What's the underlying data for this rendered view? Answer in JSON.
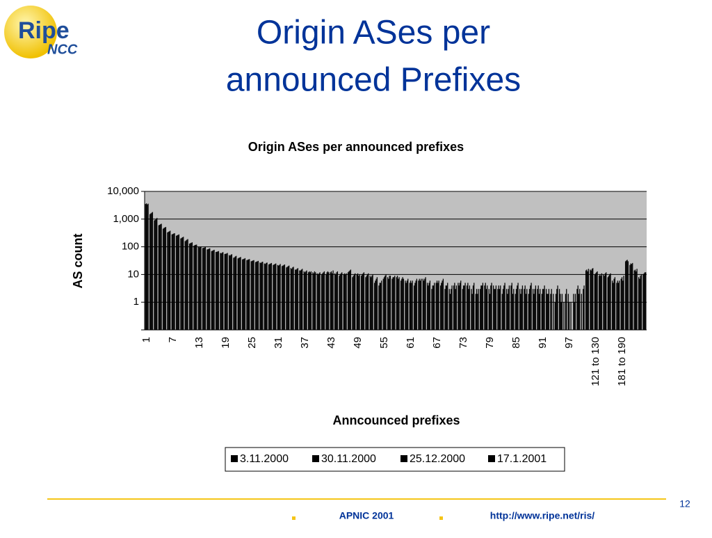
{
  "slide": {
    "logo_main": "Ripe",
    "logo_sub": "NCC",
    "title_lines": [
      "Origin ASes per",
      "announced Prefixes"
    ],
    "page_number": "12",
    "footer_left": "APNIC 2001",
    "footer_right": "http://www.ripe.net/ris/"
  },
  "chart_data": {
    "type": "bar",
    "title": "Origin ASes per announced prefixes",
    "x_label": "Anncounced prefixes",
    "y_label": "AS count",
    "log_scale": true,
    "grid": true,
    "ylim": [
      0.1,
      10000
    ],
    "yticks": [
      1,
      10,
      100,
      {
        "value": 1000,
        "label": "1,000"
      },
      {
        "value": 10000,
        "label": "10,000"
      }
    ],
    "categories": [
      "1",
      null,
      null,
      null,
      null,
      null,
      "7",
      null,
      null,
      null,
      null,
      null,
      "13",
      null,
      null,
      null,
      null,
      null,
      "19",
      null,
      null,
      null,
      null,
      null,
      "25",
      null,
      null,
      null,
      null,
      null,
      "31",
      null,
      null,
      null,
      null,
      null,
      "37",
      null,
      null,
      null,
      null,
      null,
      "43",
      null,
      null,
      null,
      null,
      null,
      "49",
      null,
      null,
      null,
      null,
      null,
      "55",
      null,
      null,
      null,
      null,
      null,
      "61",
      null,
      null,
      null,
      null,
      null,
      "67",
      null,
      null,
      null,
      null,
      null,
      "73",
      null,
      null,
      null,
      null,
      null,
      "79",
      null,
      null,
      null,
      null,
      null,
      "85",
      null,
      null,
      null,
      null,
      null,
      "91",
      null,
      null,
      null,
      null,
      null,
      "97",
      null,
      null,
      null,
      null,
      null,
      "121 to 130",
      null,
      null,
      null,
      null,
      null,
      "181 to 190",
      null,
      null,
      null,
      null,
      null
    ],
    "series": [
      {
        "name": "3.11.2000",
        "color": "#000000",
        "values": [
          3500,
          1500,
          900,
          600,
          450,
          330,
          280,
          250,
          200,
          160,
          130,
          110,
          100,
          90,
          80,
          70,
          65,
          60,
          55,
          50,
          40,
          38,
          35,
          33,
          30,
          28,
          27,
          25,
          23,
          22,
          22,
          20,
          18,
          17,
          15,
          14,
          13,
          12,
          12,
          11,
          10,
          10,
          12,
          11,
          9,
          10,
          12,
          8,
          10,
          9,
          8,
          9,
          5,
          4,
          7,
          8,
          7,
          8,
          6,
          6,
          5,
          4,
          6,
          7,
          5,
          3,
          5,
          4,
          3,
          3,
          4,
          5,
          3,
          4,
          3,
          2,
          3,
          4,
          3,
          4,
          3,
          2,
          3,
          4,
          2,
          3,
          3,
          2,
          3,
          3,
          2,
          3,
          2,
          1,
          3,
          1,
          2,
          0,
          3,
          2,
          14,
          15,
          10,
          9,
          10,
          8,
          6,
          5,
          7,
          30,
          22,
          14,
          8,
          10
        ]
      },
      {
        "name": "30.11.2000",
        "color": "#000000",
        "values": [
          3700,
          1600,
          950,
          620,
          480,
          350,
          290,
          260,
          210,
          170,
          135,
          115,
          95,
          92,
          82,
          72,
          66,
          58,
          56,
          48,
          42,
          40,
          36,
          34,
          31,
          29,
          26,
          24,
          24,
          23,
          21,
          21,
          19,
          16,
          15,
          14,
          12,
          13,
          11,
          10,
          11,
          12,
          13,
          10,
          10,
          11,
          13,
          9,
          11,
          10,
          9,
          8,
          6,
          5,
          8,
          7,
          8,
          9,
          7,
          5,
          6,
          5,
          7,
          6,
          4,
          4,
          6,
          5,
          4,
          2,
          5,
          4,
          4,
          5,
          2,
          3,
          4,
          5,
          2,
          3,
          4,
          3,
          2,
          5,
          3,
          2,
          4,
          3,
          2,
          4,
          3,
          2,
          3,
          2,
          2,
          0,
          1,
          2,
          4,
          0,
          15,
          14,
          11,
          10,
          9,
          9,
          5,
          6,
          8,
          32,
          25,
          15,
          7,
          11
        ]
      },
      {
        "name": "25.12.2000",
        "color": "#000000",
        "values": [
          3400,
          1700,
          1000,
          650,
          500,
          360,
          300,
          270,
          220,
          180,
          140,
          118,
          98,
          95,
          85,
          75,
          68,
          62,
          57,
          52,
          45,
          41,
          37,
          35,
          32,
          30,
          28,
          26,
          25,
          24,
          22,
          22,
          20,
          18,
          16,
          15,
          13,
          12,
          13,
          11,
          12,
          13,
          11,
          12,
          11,
          10,
          14,
          10,
          9,
          11,
          10,
          9,
          7,
          5,
          9,
          9,
          8,
          7,
          8,
          6,
          5,
          6,
          6,
          7,
          5,
          4,
          5,
          6,
          4,
          3,
          3,
          5,
          4,
          3,
          4,
          2,
          4,
          3,
          4,
          3,
          3,
          4,
          3,
          2,
          4,
          3,
          2,
          4,
          3,
          2,
          3,
          2,
          0,
          3,
          1,
          2,
          0,
          1,
          2,
          3,
          13,
          16,
          12,
          9,
          11,
          10,
          7,
          5,
          6,
          34,
          24,
          13,
          9,
          12
        ]
      },
      {
        "name": "17.1.2001",
        "color": "#000000",
        "values": [
          3600,
          1800,
          1100,
          680,
          520,
          380,
          310,
          280,
          230,
          190,
          145,
          120,
          100,
          98,
          88,
          78,
          70,
          64,
          60,
          54,
          47,
          43,
          39,
          36,
          33,
          31,
          29,
          27,
          26,
          25,
          24,
          23,
          21,
          19,
          17,
          16,
          14,
          13,
          12,
          12,
          13,
          12,
          14,
          13,
          12,
          11,
          15,
          11,
          10,
          12,
          11,
          10,
          8,
          6,
          10,
          9,
          9,
          8,
          7,
          7,
          6,
          7,
          7,
          8,
          6,
          5,
          6,
          7,
          5,
          4,
          4,
          6,
          5,
          4,
          5,
          3,
          5,
          4,
          5,
          4,
          4,
          5,
          4,
          3,
          5,
          4,
          3,
          5,
          4,
          3,
          4,
          3,
          2,
          4,
          2,
          3,
          1,
          2,
          3,
          4,
          16,
          17,
          13,
          11,
          12,
          11,
          8,
          6,
          9,
          30,
          26,
          16,
          10,
          12
        ]
      }
    ]
  }
}
